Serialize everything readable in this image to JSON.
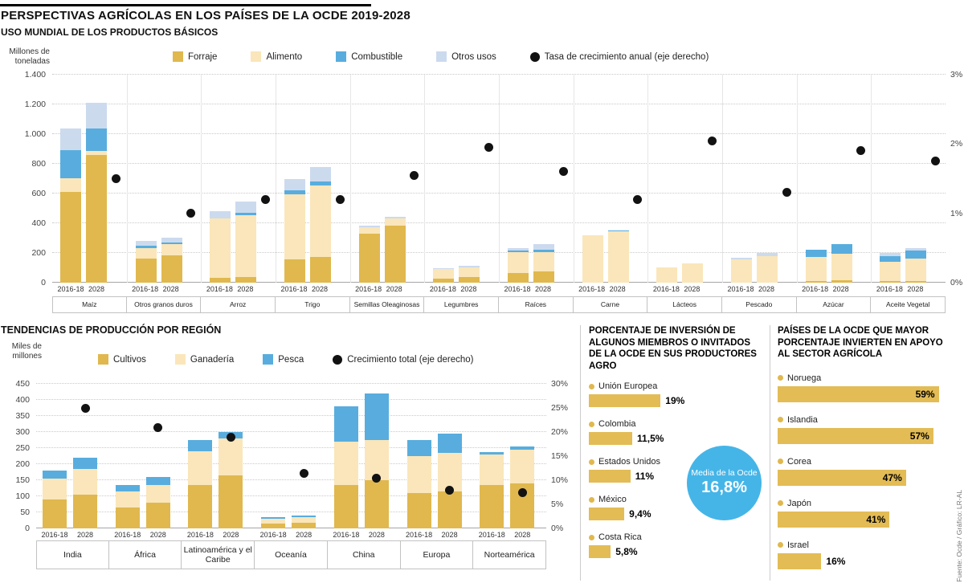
{
  "header": {
    "title": "PERSPECTIVAS AGRÍCOLAS EN LOS PAÍSES DE LA OCDE 2019-2028",
    "subtitle": "USO MUNDIAL DE LOS PRODUCTOS BÁSICOS"
  },
  "colors": {
    "gold": "#E0B84E",
    "cream": "#FAE6BA",
    "blue": "#58ADDE",
    "pale_blue": "#CCDAEE",
    "dot_black": "#121212",
    "circle_blue": "#45B5E8",
    "hbar_gold": "#E3BC55"
  },
  "chart_data": [
    {
      "type": "bar",
      "stacked": true,
      "title": "USO MUNDIAL DE LOS PRODUCTOS BÁSICOS",
      "ylabel": "Millones de toneladas",
      "ylim": [
        0,
        1400
      ],
      "yticks": [
        0,
        200,
        400,
        600,
        800,
        1000,
        1200,
        1400
      ],
      "ytick_labels": [
        "0",
        "200",
        "400",
        "600",
        "800",
        "1.000",
        "1.200",
        "1.400"
      ],
      "y2lim": [
        0,
        3
      ],
      "y2ticks": [
        0,
        1,
        2,
        3
      ],
      "y2tick_labels": [
        "0%",
        "1%",
        "2%",
        "3%"
      ],
      "series": [
        "Forraje",
        "Alimento",
        "Combustible",
        "Otros usos"
      ],
      "series_colors": [
        "#E0B84E",
        "#FAE6BA",
        "#58ADDE",
        "#CCDAEE"
      ],
      "dot_series": "Tasa de crecimiento anual (eje derecho)",
      "bar_labels": [
        "2016-18",
        "2028"
      ],
      "legend_position": "top",
      "grid": true,
      "categories": [
        {
          "name": "Maíz",
          "bars": [
            [
              610,
              95,
              185,
              150
            ],
            [
              860,
              25,
              155,
              170
            ]
          ],
          "growth": 1.5
        },
        {
          "name": "Otros granos duros",
          "bars": [
            [
              160,
              75,
              15,
              30
            ],
            [
              185,
              75,
              12,
              30
            ]
          ],
          "growth": 1.0
        },
        {
          "name": "Arroz",
          "bars": [
            [
              35,
              400,
              0,
              45
            ],
            [
              40,
              415,
              15,
              75
            ]
          ],
          "growth": 1.2
        },
        {
          "name": "Trigo",
          "bars": [
            [
              155,
              440,
              25,
              80
            ],
            [
              175,
              480,
              25,
              100
            ]
          ],
          "growth": 1.2
        },
        {
          "name": "Semillas Oleaginosas",
          "bars": [
            [
              330,
              45,
              0,
              10
            ],
            [
              385,
              45,
              0,
              15
            ]
          ],
          "growth": 1.55
        },
        {
          "name": "Legumbres",
          "bars": [
            [
              25,
              65,
              0,
              8
            ],
            [
              40,
              65,
              0,
              8
            ]
          ],
          "growth": 1.95
        },
        {
          "name": "Raíces",
          "bars": [
            [
              65,
              140,
              10,
              20
            ],
            [
              75,
              130,
              15,
              40
            ]
          ],
          "growth": 1.6
        },
        {
          "name": "Carne",
          "bars": [
            [
              0,
              318,
              0,
              2
            ],
            [
              0,
              345,
              5,
              0
            ]
          ],
          "growth": 1.2
        },
        {
          "name": "Lácteos",
          "bars": [
            [
              0,
              105,
              0,
              0
            ],
            [
              0,
              130,
              0,
              0
            ]
          ],
          "growth": 2.05
        },
        {
          "name": "Pescado",
          "bars": [
            [
              0,
              155,
              0,
              15
            ],
            [
              0,
              180,
              0,
              20
            ]
          ],
          "growth": 1.3
        },
        {
          "name": "Azúcar",
          "bars": [
            [
              10,
              165,
              45,
              0
            ],
            [
              15,
              180,
              65,
              0
            ]
          ],
          "growth": 1.9
        },
        {
          "name": "Aceite Vegetal",
          "bars": [
            [
              10,
              130,
              40,
              20
            ],
            [
              10,
              150,
              55,
              20
            ]
          ],
          "growth": 1.75
        }
      ]
    },
    {
      "type": "bar",
      "stacked": true,
      "title": "TENDENCIAS DE PRODUCCIÓN POR REGIÓN",
      "ylabel": "Miles de millones",
      "ylim": [
        0,
        450
      ],
      "yticks": [
        0,
        50,
        100,
        150,
        200,
        250,
        300,
        350,
        400,
        450
      ],
      "ytick_labels": [
        "0",
        "50",
        "100",
        "150",
        "200",
        "250",
        "300",
        "350",
        "400",
        "450"
      ],
      "y2lim": [
        0,
        30
      ],
      "y2ticks": [
        0,
        5,
        10,
        15,
        20,
        25,
        30
      ],
      "y2tick_labels": [
        "0%",
        "5%",
        "10%",
        "15%",
        "20%",
        "25%",
        "30%"
      ],
      "series": [
        "Cultivos",
        "Ganadería",
        "Pesca"
      ],
      "series_colors": [
        "#E0B84E",
        "#FAE6BA",
        "#58ADDE"
      ],
      "dot_series": "Crecimiento total (eje derecho)",
      "bar_labels": [
        "2016-18",
        "2028"
      ],
      "legend_position": "top",
      "grid": true,
      "categories": [
        {
          "name": "India",
          "bars": [
            [
              90,
              65,
              25
            ],
            [
              105,
              80,
              35
            ]
          ],
          "growth": 25
        },
        {
          "name": "África",
          "bars": [
            [
              65,
              50,
              20
            ],
            [
              80,
              55,
              25
            ]
          ],
          "growth": 21
        },
        {
          "name": "Latinoamérica y el Caribe",
          "bars": [
            [
              135,
              105,
              35
            ],
            [
              165,
              115,
              20
            ]
          ],
          "growth": 19
        },
        {
          "name": "Oceanía",
          "bars": [
            [
              15,
              15,
              5
            ],
            [
              18,
              16,
              6
            ]
          ],
          "growth": 11.5
        },
        {
          "name": "China",
          "bars": [
            [
              135,
              135,
              110
            ],
            [
              150,
              125,
              145
            ]
          ],
          "growth": 10.5
        },
        {
          "name": "Europa",
          "bars": [
            [
              110,
              115,
              50
            ],
            [
              115,
              120,
              60
            ]
          ],
          "growth": 8
        },
        {
          "name": "Norteamérica",
          "bars": [
            [
              135,
              95,
              8
            ],
            [
              140,
              105,
              10
            ]
          ],
          "growth": 7.5
        }
      ]
    }
  ],
  "investment_panel": {
    "title": "PORCENTAJE DE INVERSIÓN DE ALGUNOS MIEMBROS O INVITADOS DE LA OCDE EN SUS PRODUCTORES AGRO",
    "items": [
      {
        "label": "Unión Europea",
        "value": 19,
        "display": "19%"
      },
      {
        "label": "Colombia",
        "value": 11.5,
        "display": "11,5%"
      },
      {
        "label": "Estados Unidos",
        "value": 11,
        "display": "11%"
      },
      {
        "label": "México",
        "value": 9.4,
        "display": "9,4%"
      },
      {
        "label": "Costa Rica",
        "value": 5.8,
        "display": "5,8%"
      }
    ],
    "average": {
      "label": "Media de la Ocde",
      "value": "16,8%"
    }
  },
  "top_countries_panel": {
    "title": "PAÍSES DE LA OCDE QUE MAYOR PORCENTAJE INVIERTEN EN APOYO AL SECTOR AGRÍCOLA",
    "items": [
      {
        "label": "Noruega",
        "value": 59,
        "display": "59%"
      },
      {
        "label": "Islandia",
        "value": 57,
        "display": "57%"
      },
      {
        "label": "Corea",
        "value": 47,
        "display": "47%"
      },
      {
        "label": "Japón",
        "value": 41,
        "display": "41%"
      },
      {
        "label": "Israel",
        "value": 16,
        "display": "16%"
      }
    ]
  },
  "footer": {
    "credit": "Fuente: Ocde / Gráfico: LR-AL"
  }
}
